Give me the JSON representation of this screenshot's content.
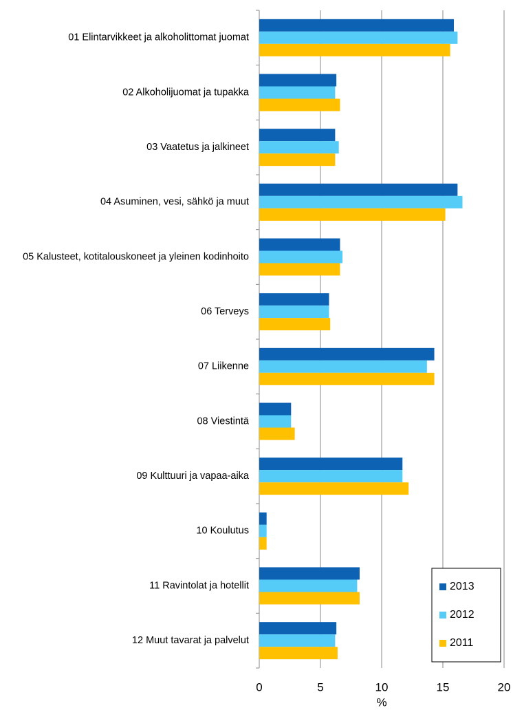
{
  "chart_data": {
    "type": "hbar",
    "xlabel": "%",
    "categories": [
      "01 Elintarvikkeet ja alkoholittomat juomat",
      "02 Alkoholijuomat ja tupakka",
      "03 Vaatetus ja jalkineet",
      "04 Asuminen, vesi, sähkö ja muut",
      "05 Kalusteet, kotitalouskoneet ja yleinen kodinhoito",
      "06 Terveys",
      "07 Liikenne",
      "08 Viestintä",
      "09 Kulttuuri ja vapaa-aika",
      "10 Koulutus",
      "11 Ravintolat ja hotellit",
      "12 Muut tavarat ja palvelut"
    ],
    "series": [
      {
        "name": "2013",
        "color": "#0e62b4",
        "values": [
          15.9,
          6.3,
          6.2,
          16.2,
          6.6,
          5.7,
          14.3,
          2.6,
          11.7,
          0.6,
          8.2,
          6.3
        ]
      },
      {
        "name": "2012",
        "color": "#55ccf8",
        "values": [
          16.2,
          6.2,
          6.5,
          16.6,
          6.8,
          5.7,
          13.7,
          2.6,
          11.7,
          0.6,
          8.0,
          6.2
        ]
      },
      {
        "name": "2011",
        "color": "#ffc000",
        "values": [
          15.6,
          6.6,
          6.2,
          15.2,
          6.6,
          5.8,
          14.3,
          2.9,
          12.2,
          0.6,
          8.2,
          6.4
        ]
      }
    ],
    "xlim": [
      0,
      20
    ],
    "xticks": [
      0,
      5,
      10,
      15,
      20
    ],
    "grid": true,
    "legend": "lower right"
  }
}
